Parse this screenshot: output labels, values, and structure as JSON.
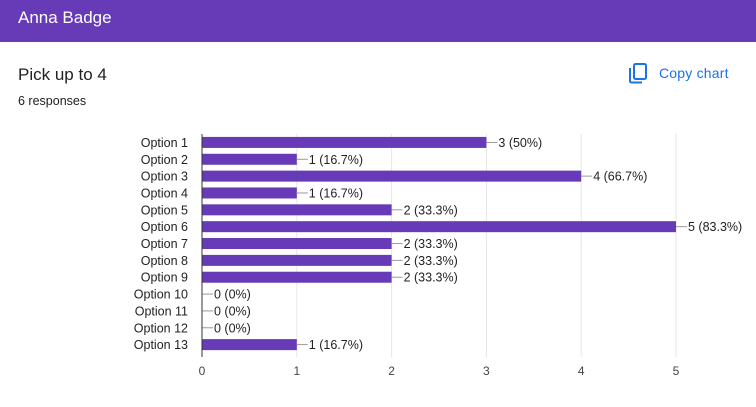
{
  "header": {
    "title": "Anna Badge"
  },
  "question": {
    "title": "Pick up to 4",
    "responses": "6 responses"
  },
  "copy_chart": {
    "label": "Copy chart",
    "icon": "copy-icon"
  },
  "colors": {
    "header": "#673ab7",
    "bar": "#673ab7",
    "link": "#1a73e8",
    "grid": "#e6e6e6"
  },
  "chart_data": {
    "type": "bar",
    "orientation": "horizontal",
    "categories": [
      "Option 1",
      "Option 2",
      "Option 3",
      "Option 4",
      "Option 5",
      "Option 6",
      "Option 7",
      "Option 8",
      "Option 9",
      "Option 10",
      "Option 11",
      "Option 12",
      "Option 13"
    ],
    "values": [
      3,
      1,
      4,
      1,
      2,
      5,
      2,
      2,
      2,
      0,
      0,
      0,
      1
    ],
    "data_labels": [
      "3 (50%)",
      "1 (16.7%)",
      "4 (66.7%)",
      "1 (16.7%)",
      "2 (33.3%)",
      "5 (83.3%)",
      "2 (33.3%)",
      "2 (33.3%)",
      "2 (33.3%)",
      "0 (0%)",
      "0 (0%)",
      "0 (0%)",
      "1 (16.7%)"
    ],
    "xlim": [
      0,
      5
    ],
    "xticks": [
      0,
      1,
      2,
      3,
      4,
      5
    ],
    "grid": true
  }
}
